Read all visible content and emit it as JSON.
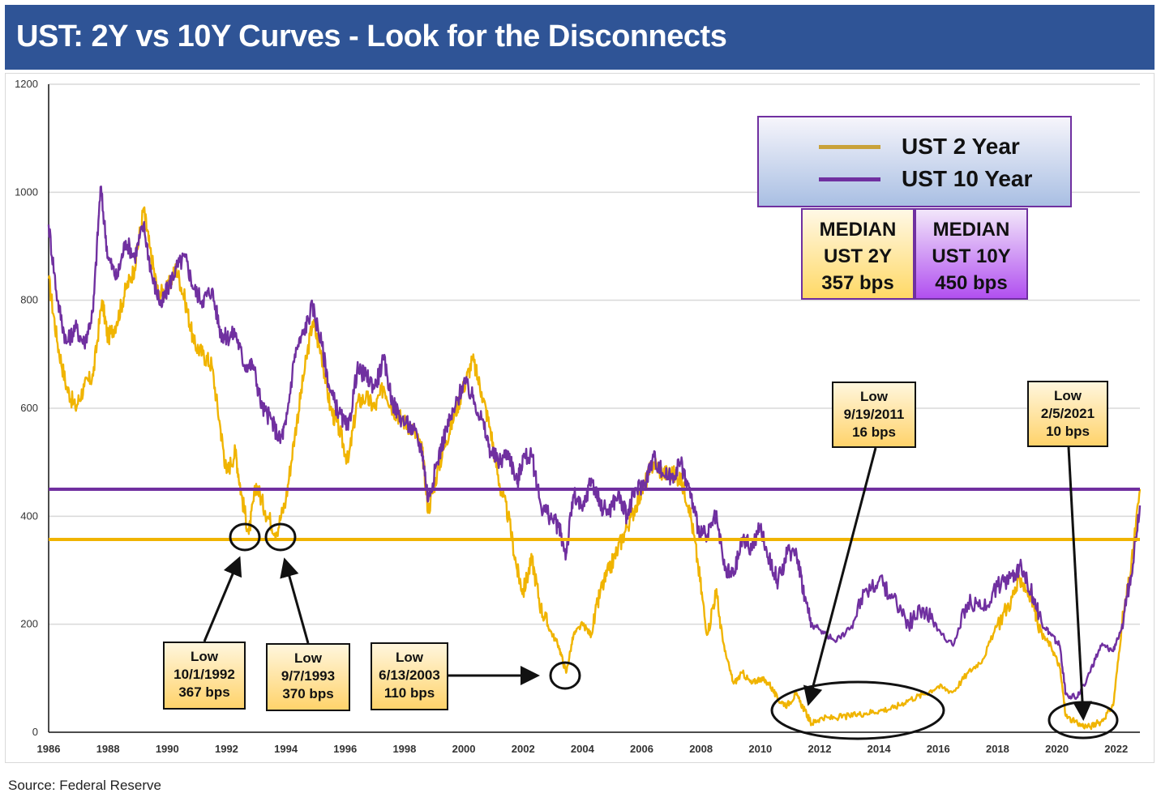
{
  "title": "UST: 2Y vs 10Y Curves - Look for the Disconnects",
  "source": "Source: Federal Reserve",
  "legend": {
    "items": [
      {
        "label": "UST 2 Year",
        "color": "#f0b400"
      },
      {
        "label": "UST 10 Year",
        "color": "#7030a0"
      }
    ]
  },
  "medians": [
    {
      "line1": "MEDIAN",
      "line2": "UST 2Y",
      "value": "357 bps"
    },
    {
      "line1": "MEDIAN",
      "line2": "UST 10Y",
      "value": "450 bps"
    }
  ],
  "callouts": [
    {
      "line1": "Low",
      "line2": "10/1/1992",
      "line3": "367 bps"
    },
    {
      "line1": "Low",
      "line2": "9/7/1993",
      "line3": "370 bps"
    },
    {
      "line1": "Low",
      "line2": "6/13/2003",
      "line3": "110 bps"
    },
    {
      "line1": "Low",
      "line2": "9/19/2011",
      "line3": "16 bps"
    },
    {
      "line1": "Low",
      "line2": "2/5/2021",
      "line3": "10 bps"
    }
  ],
  "chart_data": {
    "type": "line",
    "title": "UST: 2Y vs 10Y Curves - Look for the Disconnects",
    "xlabel": "",
    "ylabel": "",
    "units": "bps",
    "xlim": [
      1986,
      2022.8
    ],
    "ylim": [
      0,
      1200
    ],
    "x_ticks": [
      "1986",
      "1988",
      "1990",
      "1992",
      "1994",
      "1996",
      "1998",
      "2000",
      "2002",
      "2004",
      "2006",
      "2008",
      "2010",
      "2012",
      "2014",
      "2016",
      "2018",
      "2020",
      "2022"
    ],
    "y_ticks": [
      "0",
      "200",
      "400",
      "600",
      "800",
      "1000",
      "1200"
    ],
    "grid": true,
    "legend_position": "top-right",
    "series": [
      {
        "name": "UST 2 Year",
        "color": "#f0b400",
        "points": [
          [
            1986.0,
            840
          ],
          [
            1986.3,
            720
          ],
          [
            1986.6,
            640
          ],
          [
            1986.9,
            600
          ],
          [
            1987.2,
            640
          ],
          [
            1987.5,
            660
          ],
          [
            1987.8,
            800
          ],
          [
            1988.0,
            730
          ],
          [
            1988.3,
            760
          ],
          [
            1988.6,
            820
          ],
          [
            1988.9,
            860
          ],
          [
            1989.2,
            970
          ],
          [
            1989.4,
            900
          ],
          [
            1989.7,
            810
          ],
          [
            1990.0,
            820
          ],
          [
            1990.3,
            860
          ],
          [
            1990.6,
            800
          ],
          [
            1990.9,
            720
          ],
          [
            1991.2,
            700
          ],
          [
            1991.5,
            680
          ],
          [
            1991.8,
            560
          ],
          [
            1992.0,
            480
          ],
          [
            1992.3,
            520
          ],
          [
            1992.5,
            440
          ],
          [
            1992.75,
            367
          ],
          [
            1993.0,
            460
          ],
          [
            1993.3,
            410
          ],
          [
            1993.68,
            370
          ],
          [
            1994.0,
            430
          ],
          [
            1994.3,
            550
          ],
          [
            1994.6,
            660
          ],
          [
            1994.9,
            760
          ],
          [
            1995.2,
            700
          ],
          [
            1995.5,
            600
          ],
          [
            1995.8,
            560
          ],
          [
            1996.1,
            500
          ],
          [
            1996.4,
            610
          ],
          [
            1996.7,
            620
          ],
          [
            1997.0,
            600
          ],
          [
            1997.3,
            640
          ],
          [
            1997.6,
            600
          ],
          [
            1997.9,
            580
          ],
          [
            1998.3,
            560
          ],
          [
            1998.6,
            520
          ],
          [
            1998.8,
            410
          ],
          [
            1999.1,
            480
          ],
          [
            1999.4,
            540
          ],
          [
            1999.7,
            590
          ],
          [
            2000.0,
            640
          ],
          [
            2000.3,
            690
          ],
          [
            2000.6,
            630
          ],
          [
            2000.9,
            560
          ],
          [
            2001.2,
            460
          ],
          [
            2001.5,
            400
          ],
          [
            2001.8,
            300
          ],
          [
            2002.0,
            260
          ],
          [
            2002.3,
            320
          ],
          [
            2002.6,
            230
          ],
          [
            2002.9,
            190
          ],
          [
            2003.2,
            160
          ],
          [
            2003.45,
            110
          ],
          [
            2003.7,
            180
          ],
          [
            2004.0,
            200
          ],
          [
            2004.3,
            180
          ],
          [
            2004.6,
            260
          ],
          [
            2004.9,
            300
          ],
          [
            2005.2,
            340
          ],
          [
            2005.5,
            380
          ],
          [
            2005.8,
            420
          ],
          [
            2006.1,
            460
          ],
          [
            2006.4,
            500
          ],
          [
            2006.7,
            480
          ],
          [
            2007.0,
            480
          ],
          [
            2007.3,
            470
          ],
          [
            2007.6,
            420
          ],
          [
            2007.9,
            310
          ],
          [
            2008.2,
            180
          ],
          [
            2008.5,
            260
          ],
          [
            2008.8,
            150
          ],
          [
            2009.1,
            90
          ],
          [
            2009.4,
            110
          ],
          [
            2009.7,
            90
          ],
          [
            2010.0,
            100
          ],
          [
            2010.3,
            90
          ],
          [
            2010.6,
            60
          ],
          [
            2010.9,
            50
          ],
          [
            2011.2,
            70
          ],
          [
            2011.5,
            40
          ],
          [
            2011.72,
            16
          ],
          [
            2012.0,
            25
          ],
          [
            2012.5,
            27
          ],
          [
            2013.0,
            30
          ],
          [
            2013.5,
            35
          ],
          [
            2014.0,
            40
          ],
          [
            2014.5,
            45
          ],
          [
            2015.0,
            60
          ],
          [
            2015.5,
            70
          ],
          [
            2016.0,
            85
          ],
          [
            2016.5,
            75
          ],
          [
            2017.0,
            110
          ],
          [
            2017.5,
            135
          ],
          [
            2018.0,
            200
          ],
          [
            2018.5,
            250
          ],
          [
            2018.8,
            285
          ],
          [
            2019.2,
            240
          ],
          [
            2019.5,
            180
          ],
          [
            2019.8,
            160
          ],
          [
            2020.1,
            120
          ],
          [
            2020.3,
            30
          ],
          [
            2020.7,
            15
          ],
          [
            2021.1,
            10
          ],
          [
            2021.5,
            20
          ],
          [
            2021.9,
            50
          ],
          [
            2022.2,
            200
          ],
          [
            2022.5,
            300
          ],
          [
            2022.8,
            450
          ]
        ]
      },
      {
        "name": "UST 10 Year",
        "color": "#7030a0",
        "points": [
          [
            1986.0,
            940
          ],
          [
            1986.3,
            800
          ],
          [
            1986.6,
            720
          ],
          [
            1986.9,
            750
          ],
          [
            1987.2,
            720
          ],
          [
            1987.5,
            780
          ],
          [
            1987.75,
            1010
          ],
          [
            1988.0,
            880
          ],
          [
            1988.3,
            840
          ],
          [
            1988.6,
            910
          ],
          [
            1988.9,
            880
          ],
          [
            1989.2,
            940
          ],
          [
            1989.5,
            840
          ],
          [
            1989.8,
            790
          ],
          [
            1990.0,
            820
          ],
          [
            1990.3,
            860
          ],
          [
            1990.6,
            880
          ],
          [
            1990.9,
            820
          ],
          [
            1991.2,
            800
          ],
          [
            1991.5,
            820
          ],
          [
            1991.8,
            740
          ],
          [
            1992.0,
            730
          ],
          [
            1992.3,
            740
          ],
          [
            1992.6,
            680
          ],
          [
            1992.9,
            680
          ],
          [
            1993.2,
            600
          ],
          [
            1993.5,
            580
          ],
          [
            1993.8,
            540
          ],
          [
            1994.0,
            570
          ],
          [
            1994.3,
            700
          ],
          [
            1994.6,
            740
          ],
          [
            1994.9,
            790
          ],
          [
            1995.2,
            720
          ],
          [
            1995.5,
            630
          ],
          [
            1995.8,
            590
          ],
          [
            1996.1,
            560
          ],
          [
            1996.4,
            670
          ],
          [
            1996.7,
            660
          ],
          [
            1997.0,
            640
          ],
          [
            1997.3,
            690
          ],
          [
            1997.6,
            610
          ],
          [
            1997.9,
            580
          ],
          [
            1998.3,
            560
          ],
          [
            1998.6,
            520
          ],
          [
            1998.8,
            430
          ],
          [
            1999.1,
            500
          ],
          [
            1999.4,
            560
          ],
          [
            1999.7,
            600
          ],
          [
            2000.0,
            650
          ],
          [
            2000.3,
            620
          ],
          [
            2000.6,
            580
          ],
          [
            2000.9,
            520
          ],
          [
            2001.2,
            500
          ],
          [
            2001.5,
            520
          ],
          [
            2001.8,
            460
          ],
          [
            2002.0,
            510
          ],
          [
            2002.3,
            510
          ],
          [
            2002.6,
            420
          ],
          [
            2002.9,
            400
          ],
          [
            2003.2,
            380
          ],
          [
            2003.45,
            330
          ],
          [
            2003.7,
            440
          ],
          [
            2004.0,
            410
          ],
          [
            2004.3,
            470
          ],
          [
            2004.6,
            420
          ],
          [
            2004.9,
            410
          ],
          [
            2005.2,
            440
          ],
          [
            2005.5,
            400
          ],
          [
            2005.8,
            450
          ],
          [
            2006.1,
            460
          ],
          [
            2006.4,
            510
          ],
          [
            2006.7,
            480
          ],
          [
            2007.0,
            470
          ],
          [
            2007.3,
            500
          ],
          [
            2007.6,
            450
          ],
          [
            2007.9,
            380
          ],
          [
            2008.2,
            360
          ],
          [
            2008.5,
            400
          ],
          [
            2008.8,
            300
          ],
          [
            2009.1,
            290
          ],
          [
            2009.4,
            360
          ],
          [
            2009.7,
            340
          ],
          [
            2010.0,
            380
          ],
          [
            2010.3,
            320
          ],
          [
            2010.6,
            280
          ],
          [
            2010.9,
            330
          ],
          [
            2011.2,
            340
          ],
          [
            2011.5,
            250
          ],
          [
            2011.72,
            200
          ],
          [
            2012.0,
            190
          ],
          [
            2012.5,
            170
          ],
          [
            2013.0,
            190
          ],
          [
            2013.5,
            260
          ],
          [
            2014.0,
            280
          ],
          [
            2014.5,
            250
          ],
          [
            2015.0,
            200
          ],
          [
            2015.5,
            230
          ],
          [
            2016.0,
            190
          ],
          [
            2016.5,
            160
          ],
          [
            2017.0,
            240
          ],
          [
            2017.5,
            230
          ],
          [
            2018.0,
            270
          ],
          [
            2018.5,
            290
          ],
          [
            2018.8,
            310
          ],
          [
            2019.2,
            250
          ],
          [
            2019.5,
            200
          ],
          [
            2019.8,
            180
          ],
          [
            2020.1,
            160
          ],
          [
            2020.3,
            70
          ],
          [
            2020.7,
            65
          ],
          [
            2021.1,
            110
          ],
          [
            2021.5,
            160
          ],
          [
            2021.9,
            150
          ],
          [
            2022.2,
            200
          ],
          [
            2022.5,
            290
          ],
          [
            2022.8,
            420
          ]
        ]
      }
    ],
    "reference_lines": [
      {
        "label": "MEDIAN UST 2Y",
        "value": 357,
        "color": "#f0b400"
      },
      {
        "label": "MEDIAN UST 10Y",
        "value": 450,
        "color": "#7030a0"
      }
    ],
    "annotations": [
      {
        "text": "Low 10/1/1992 367 bps",
        "x": 1992.75,
        "y": 367
      },
      {
        "text": "Low 9/7/1993 370 bps",
        "x": 1993.68,
        "y": 370
      },
      {
        "text": "Low 6/13/2003 110 bps",
        "x": 2003.45,
        "y": 110
      },
      {
        "text": "Low 9/19/2011 16 bps",
        "x": 2011.72,
        "y": 16
      },
      {
        "text": "Low 2/5/2021 10 bps",
        "x": 2021.1,
        "y": 10
      }
    ]
  }
}
